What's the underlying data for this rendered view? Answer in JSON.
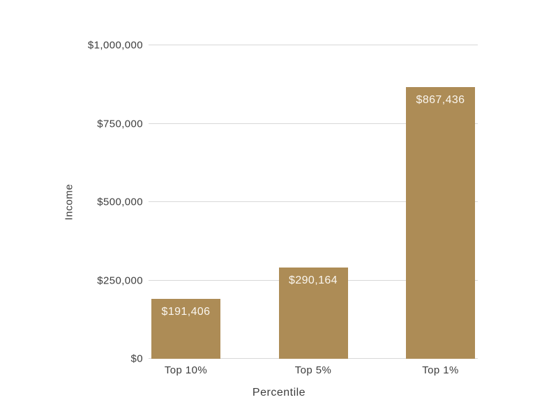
{
  "chart_data": {
    "type": "bar",
    "title": "",
    "categories": [
      "Top 10%",
      "Top 5%",
      "Top 1%"
    ],
    "values": [
      191406,
      290164,
      867436
    ],
    "bar_labels": [
      "$191,406",
      "$290,164",
      "$867,436"
    ],
    "xlabel": "Percentile",
    "ylabel": "Income",
    "ylim": [
      0,
      1000000
    ],
    "yticks": [
      0,
      250000,
      500000,
      750000,
      1000000
    ],
    "ytick_labels": [
      "$0",
      "$250,000",
      "$500,000",
      "$750,000",
      "$1,000,000"
    ],
    "grid": true,
    "legend": false,
    "colors": {
      "bar": "#ad8c56",
      "bar_label_text": "#faf6ef",
      "axis_text": "#3d3d3d",
      "gridline": "#d8d8d8",
      "background": "#ffffff"
    }
  }
}
